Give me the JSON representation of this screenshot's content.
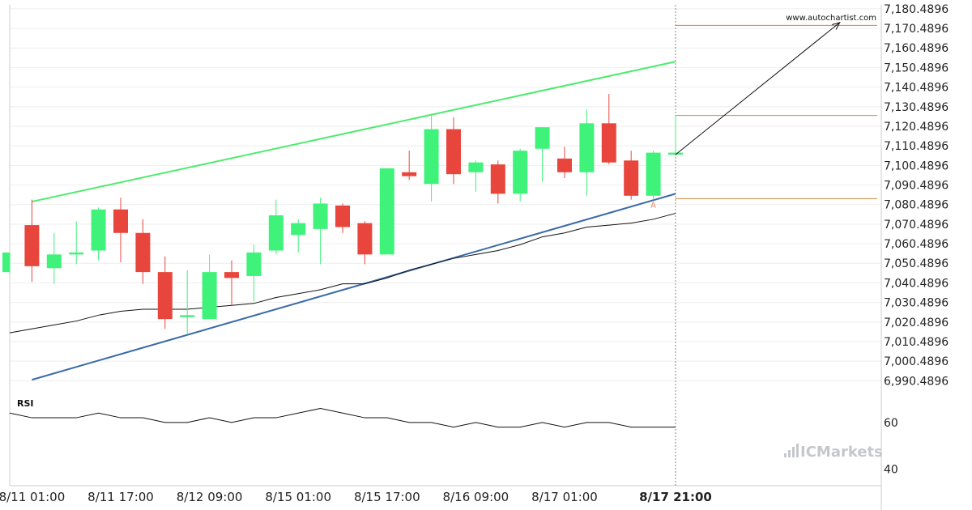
{
  "watermark": "www.autochartist.com",
  "brand": "ICMarkets",
  "chart_data": {
    "type": "candlestick",
    "y_ticks": [
      "7,180.4896",
      "7,170.4896",
      "7,160.4896",
      "7,150.4896",
      "7,140.4896",
      "7,130.4896",
      "7,120.4896",
      "7,110.4896",
      "7,100.4896",
      "7,090.4896",
      "7,080.4896",
      "7,070.4896",
      "7,060.4896",
      "7,050.4896",
      "7,040.4896",
      "7,030.4896",
      "7,020.4896",
      "7,010.4896",
      "7,000.4896",
      "6,990.4896"
    ],
    "ylim": [
      6986.5,
      7182.5
    ],
    "x_ticks": [
      {
        "label": "8/11 01:00",
        "i": 1
      },
      {
        "label": "8/11 17:00",
        "i": 5
      },
      {
        "label": "8/12 09:00",
        "i": 9
      },
      {
        "label": "8/15 01:00",
        "i": 13
      },
      {
        "label": "8/15 17:00",
        "i": 17
      },
      {
        "label": "8/16 09:00",
        "i": 21
      },
      {
        "label": "8/17 01:00",
        "i": 25
      },
      {
        "label": "8/17 21:00",
        "i": 30,
        "current": true
      }
    ],
    "candles": [
      {
        "o": 7046,
        "h": 7056,
        "l": 7045,
        "c": 7056
      },
      {
        "o": 7070,
        "h": 7083,
        "l": 7041,
        "c": 7049
      },
      {
        "o": 7048,
        "h": 7066,
        "l": 7040,
        "c": 7055
      },
      {
        "o": 7055,
        "h": 7072,
        "l": 7050,
        "c": 7056
      },
      {
        "o": 7057,
        "h": 7079,
        "l": 7052,
        "c": 7078
      },
      {
        "o": 7078,
        "h": 7084,
        "l": 7051,
        "c": 7066
      },
      {
        "o": 7066,
        "h": 7073,
        "l": 7040,
        "c": 7046
      },
      {
        "o": 7046,
        "h": 7054,
        "l": 7017,
        "c": 7022
      },
      {
        "o": 7023,
        "h": 7047,
        "l": 7014,
        "c": 7024
      },
      {
        "o": 7022,
        "h": 7055,
        "l": 7022,
        "c": 7046
      },
      {
        "o": 7046,
        "h": 7052,
        "l": 7029,
        "c": 7043
      },
      {
        "o": 7044,
        "h": 7060,
        "l": 7031,
        "c": 7056
      },
      {
        "o": 7057,
        "h": 7083,
        "l": 7055,
        "c": 7075
      },
      {
        "o": 7065,
        "h": 7073,
        "l": 7056,
        "c": 7071
      },
      {
        "o": 7068,
        "h": 7084,
        "l": 7050,
        "c": 7081
      },
      {
        "o": 7080,
        "h": 7081,
        "l": 7066,
        "c": 7069
      },
      {
        "o": 7071,
        "h": 7072,
        "l": 7050,
        "c": 7055
      },
      {
        "o": 7055,
        "h": 7099,
        "l": 7055,
        "c": 7099
      },
      {
        "o": 7097,
        "h": 7108,
        "l": 7093,
        "c": 7095
      },
      {
        "o": 7091,
        "h": 7126,
        "l": 7082,
        "c": 7119
      },
      {
        "o": 7119,
        "h": 7125,
        "l": 7091,
        "c": 7096
      },
      {
        "o": 7097,
        "h": 7103,
        "l": 7087,
        "c": 7102
      },
      {
        "o": 7101,
        "h": 7103,
        "l": 7081,
        "c": 7086
      },
      {
        "o": 7086,
        "h": 7109,
        "l": 7082,
        "c": 7108
      },
      {
        "o": 7109,
        "h": 7120,
        "l": 7092,
        "c": 7120
      },
      {
        "o": 7104,
        "h": 7110,
        "l": 7094,
        "c": 7097
      },
      {
        "o": 7097,
        "h": 7129,
        "l": 7085,
        "c": 7122
      },
      {
        "o": 7122,
        "h": 7137,
        "l": 7101,
        "c": 7102
      },
      {
        "o": 7103,
        "h": 7108,
        "l": 7083,
        "c": 7085
      },
      {
        "o": 7085,
        "h": 7108,
        "l": 7083,
        "c": 7107
      },
      {
        "o": 7106,
        "h": 7126,
        "l": 7105,
        "c": 7107
      }
    ],
    "moving_average": [
      7015,
      7017,
      7019,
      7021,
      7024,
      7026,
      7027,
      7027,
      7027,
      7028,
      7029,
      7030,
      7033,
      7035,
      7037,
      7040,
      7040,
      7043,
      7047,
      7050,
      7053,
      7055,
      7057,
      7060,
      7064,
      7066,
      7069,
      7070,
      7071,
      7073,
      7076
    ],
    "channel_upper": [
      {
        "i": 1,
        "y": 7082
      },
      {
        "i": 30,
        "y": 7153.5
      }
    ],
    "channel_lower": [
      {
        "i": 1,
        "y": 6991
      },
      {
        "i": 30,
        "y": 7086
      }
    ],
    "levels": [
      7172,
      7126,
      7083.5
    ],
    "forecast_arrow": {
      "from": {
        "i": 30,
        "y": 7106
      },
      "to": {
        "i": 37.4,
        "y": 7173.5
      }
    },
    "pattern_point": {
      "label": "A",
      "i": 29,
      "y": 7079
    },
    "rsi": {
      "label": "RSI",
      "ticks": [
        "60",
        "40"
      ],
      "ylim": [
        33,
        71
      ],
      "values": [
        64,
        62,
        62,
        62,
        64,
        62,
        62,
        60,
        60,
        62,
        60,
        62,
        62,
        64,
        66,
        64,
        62,
        62,
        60,
        60,
        58,
        60,
        58,
        58,
        60,
        58,
        60,
        60,
        58,
        58,
        58
      ]
    }
  },
  "colors": {
    "bull": "#3ff27a",
    "bear": "#e8463c",
    "channel_upper": "#4deb6e",
    "channel_lower": "#3a6aa8",
    "moving_average": "#111111",
    "levels": "#cc8a3e",
    "arrow": "#111111",
    "grid": "#eeeeee",
    "axis": "#cccccc"
  }
}
